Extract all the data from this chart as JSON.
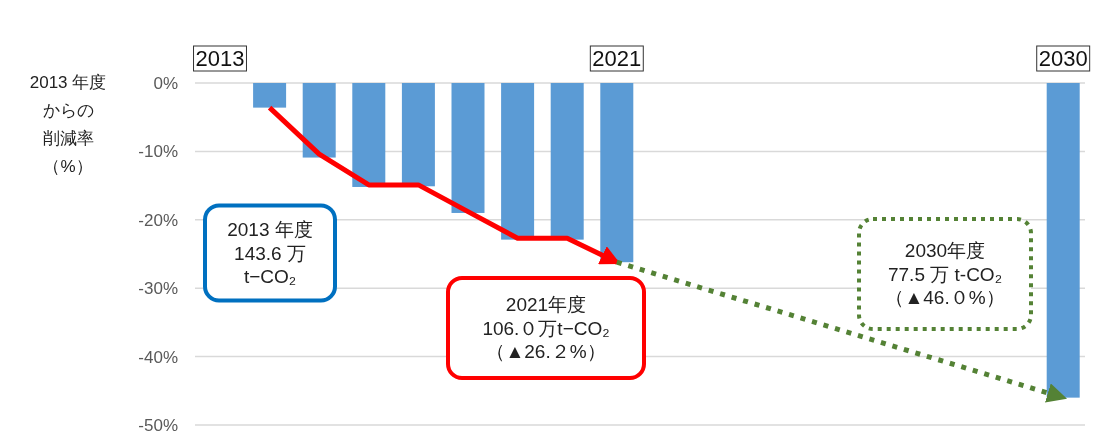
{
  "chart_data": {
    "type": "bar",
    "ylabel": "2013 年度からの削減率（%）",
    "categories": [
      "2013",
      null,
      null,
      null,
      null,
      null,
      null,
      null,
      "2021",
      null,
      null,
      null,
      null,
      null,
      null,
      null,
      null,
      "2030"
    ],
    "series": [
      {
        "color": "#5b9bd5",
        "values": [
          null,
          -3.6,
          -10.9,
          -15.2,
          -15.1,
          -19.0,
          -22.9,
          -22.9,
          -26.2,
          null,
          null,
          null,
          null,
          null,
          null,
          null,
          null,
          -46.0
        ]
      },
      {
        "type": "line",
        "color": "#ff0000",
        "line_style": "solid",
        "values": [
          null,
          -3.6,
          -10.4,
          -14.9,
          -14.9,
          -18.8,
          -22.7,
          -22.7,
          -26.2,
          null,
          null,
          null,
          null,
          null,
          null,
          null,
          null,
          null
        ]
      },
      {
        "type": "line",
        "color": "#548235",
        "line_style": "dotted",
        "values": [
          null,
          null,
          null,
          null,
          null,
          null,
          null,
          null,
          -26.2,
          null,
          null,
          null,
          null,
          null,
          null,
          null,
          null,
          -46.0
        ]
      }
    ],
    "ylim": [
      -50,
      0
    ],
    "yticks": [
      {
        "value": 0,
        "label": "0%"
      },
      {
        "value": -10,
        "label": "-10%"
      },
      {
        "value": -20,
        "label": "-20%"
      },
      {
        "value": -30,
        "label": "-30%"
      },
      {
        "value": -40,
        "label": "-40%"
      },
      {
        "value": -50,
        "label": "-50%"
      }
    ],
    "grid": "y",
    "marker": "none",
    "annotations": [
      "2013 年度\n143.6 万\nt−CO₂",
      "2021年度\n106.０万t−CO₂\n（▲26.２%）",
      "2030年度\n77.5 万 t-CO₂\n（▲46.０%）"
    ]
  }
}
